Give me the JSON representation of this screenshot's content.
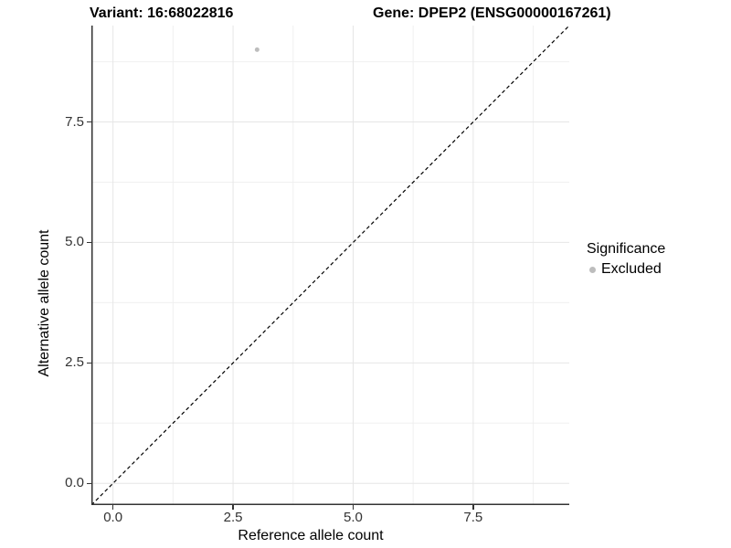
{
  "header": {
    "variant_title": "Variant: 16:68022816",
    "gene_title": "Gene: DPEP2 (ENSG00000167261)"
  },
  "chart_data": {
    "type": "scatter",
    "xlabel": "Reference allele count",
    "ylabel": "Alternative allele count",
    "xlim": [
      -0.45,
      9.5
    ],
    "ylim": [
      -0.45,
      9.5
    ],
    "x_ticks": {
      "values": [
        0,
        2.5,
        5,
        7.5
      ],
      "labels": [
        "0.0",
        "2.5",
        "5.0",
        "7.5"
      ]
    },
    "y_ticks": {
      "values": [
        0,
        2.5,
        5,
        7.5
      ],
      "labels": [
        "0.0",
        "2.5",
        "5.0",
        "7.5"
      ]
    },
    "minor_breaks": [
      1.25,
      3.75,
      6.25,
      8.75
    ],
    "grid": {
      "major_color": "#e6e6e6",
      "minor_color": "#f0f0f0"
    },
    "points": [
      {
        "x": 3,
        "y": 9,
        "significance": "Excluded"
      }
    ],
    "point_color": "#bdbdbd",
    "point_radius": 2.5,
    "identity_line": {
      "style": "dashed",
      "slope": 1,
      "intercept": 0,
      "color": "#000000"
    },
    "legend": {
      "title": "Significance",
      "position": "right",
      "items": [
        {
          "label": "Excluded",
          "color": "#bdbdbd"
        }
      ]
    }
  },
  "colors": {
    "background": "#ffffff",
    "axis_line": "#333333",
    "tick_label": "#333333",
    "title_text": "#000000"
  }
}
